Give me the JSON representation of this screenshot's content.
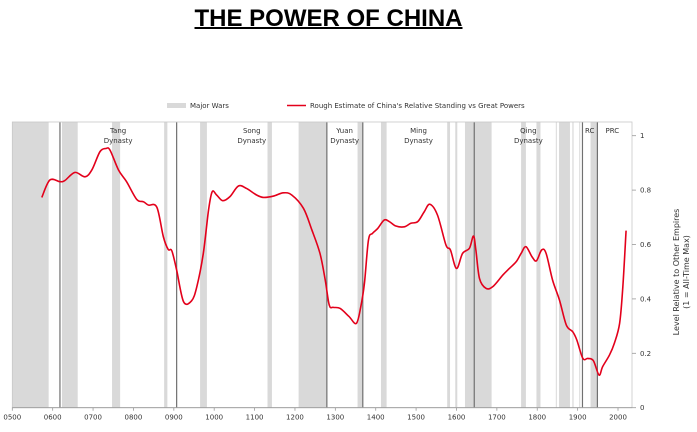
{
  "chart_data": {
    "type": "line",
    "title": "THE POWER OF CHINA",
    "xlabel": "",
    "ylabel": "Level Relative to Other Empires",
    "ylabel2": "(1 = All-Time Max)",
    "xlim": [
      500,
      2035
    ],
    "ylim": [
      0,
      1.05
    ],
    "x_ticks": [
      500,
      600,
      700,
      800,
      900,
      1000,
      1100,
      1200,
      1300,
      1400,
      1500,
      1600,
      1700,
      1800,
      1900,
      2000
    ],
    "x_tick_labels": [
      "0500",
      "0600",
      "0700",
      "0800",
      "0900",
      "1000",
      "1100",
      "1200",
      "1300",
      "1400",
      "1500",
      "1600",
      "1700",
      "1800",
      "1900",
      "2000"
    ],
    "y_ticks": [
      0,
      0.2,
      0.4,
      0.6,
      0.8,
      1
    ],
    "y_tick_labels": [
      "0",
      "0.2",
      "0.4",
      "0.6",
      "0.8",
      "1"
    ],
    "legend": {
      "placement": "top",
      "wars_label": "Major Wars",
      "line_label": "Rough Estimate of China's Relative Standing vs Great Powers"
    },
    "colors": {
      "line": "#e3001b",
      "wars": "#d9d9d9",
      "dynasty_line": "#707070"
    },
    "wars": [
      [
        500,
        590
      ],
      [
        623,
        662
      ],
      [
        747,
        767
      ],
      [
        876,
        884
      ],
      [
        965,
        982
      ],
      [
        1132,
        1143
      ],
      [
        1209,
        1279
      ],
      [
        1355,
        1368
      ],
      [
        1413,
        1427
      ],
      [
        1577,
        1584
      ],
      [
        1597,
        1602
      ],
      [
        1621,
        1687
      ],
      [
        1760,
        1772
      ],
      [
        1798,
        1808
      ],
      [
        1846,
        1848
      ],
      [
        1854,
        1881
      ],
      [
        1887,
        1890
      ],
      [
        1904,
        1906
      ],
      [
        1932,
        1949
      ]
    ],
    "dynasty_boundaries": [
      618,
      907,
      1279,
      1368,
      1644,
      1912,
      1949
    ],
    "dynasties": [
      {
        "name": "Tang",
        "sub": "Dynasty",
        "year": 762
      },
      {
        "name": "Song",
        "sub": "Dynasty",
        "year": 1093
      },
      {
        "name": "Yuan",
        "sub": "Dynasty",
        "year": 1323
      },
      {
        "name": "Ming",
        "sub": "Dynasty",
        "year": 1506
      },
      {
        "name": "Qing",
        "sub": "Dynasty",
        "year": 1778
      },
      {
        "name": "RC",
        "sub": "",
        "year": 1930
      },
      {
        "name": "PRC",
        "sub": "",
        "year": 1986
      }
    ],
    "series": [
      {
        "name": "Rough Estimate of China's Relative Standing vs Great Powers",
        "x": [
          573,
          593,
          618,
          630,
          655,
          680,
          697,
          717,
          732,
          742,
          763,
          783,
          808,
          825,
          837,
          858,
          874,
          886,
          895,
          907,
          924,
          944,
          957,
          973,
          986,
          995,
          1006,
          1021,
          1039,
          1060,
          1080,
          1105,
          1122,
          1147,
          1171,
          1192,
          1221,
          1242,
          1262,
          1275,
          1285,
          1295,
          1312,
          1334,
          1352,
          1363,
          1372,
          1382,
          1392,
          1405,
          1421,
          1434,
          1450,
          1471,
          1487,
          1504,
          1520,
          1534,
          1553,
          1574,
          1585,
          1600,
          1615,
          1632,
          1642,
          1648,
          1657,
          1673,
          1690,
          1715,
          1731,
          1748,
          1760,
          1772,
          1787,
          1798,
          1811,
          1822,
          1838,
          1855,
          1872,
          1888,
          1898,
          1913,
          1925,
          1939,
          1953,
          1962,
          1979,
          1991,
          2004,
          2012,
          2020
        ],
        "values": [
          0.773,
          0.837,
          0.831,
          0.835,
          0.865,
          0.849,
          0.874,
          0.941,
          0.953,
          0.947,
          0.874,
          0.831,
          0.766,
          0.757,
          0.745,
          0.737,
          0.629,
          0.582,
          0.577,
          0.506,
          0.39,
          0.393,
          0.445,
          0.567,
          0.727,
          0.794,
          0.782,
          0.761,
          0.776,
          0.815,
          0.806,
          0.782,
          0.773,
          0.778,
          0.79,
          0.782,
          0.733,
          0.653,
          0.567,
          0.469,
          0.377,
          0.369,
          0.365,
          0.335,
          0.31,
          0.371,
          0.457,
          0.616,
          0.641,
          0.659,
          0.69,
          0.684,
          0.668,
          0.665,
          0.678,
          0.684,
          0.72,
          0.748,
          0.708,
          0.598,
          0.58,
          0.512,
          0.567,
          0.586,
          0.631,
          0.58,
          0.475,
          0.439,
          0.445,
          0.488,
          0.512,
          0.537,
          0.567,
          0.592,
          0.555,
          0.54,
          0.58,
          0.567,
          0.469,
          0.396,
          0.304,
          0.279,
          0.249,
          0.181,
          0.181,
          0.173,
          0.12,
          0.151,
          0.194,
          0.237,
          0.31,
          0.445,
          0.651
        ]
      }
    ]
  }
}
